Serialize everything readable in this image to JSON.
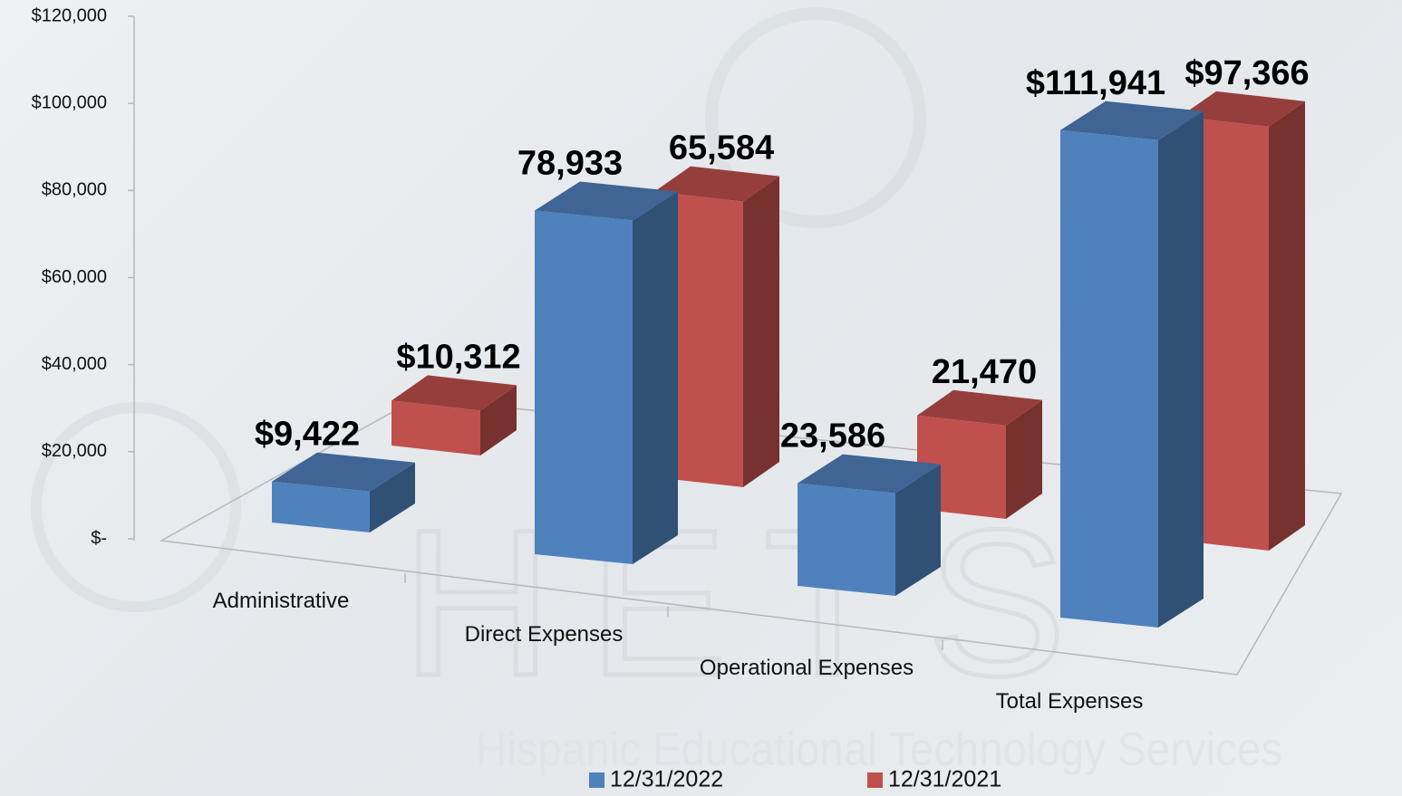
{
  "chart_data": {
    "type": "bar3d",
    "categories": [
      "Administrative",
      "Direct Expenses",
      "Operational Expenses",
      "Total Expenses"
    ],
    "series": [
      {
        "name": "12/31/2022",
        "color": "#4f81bd",
        "values": [
          9422,
          78933,
          23586,
          111941
        ],
        "value_labels": [
          "$9,422",
          "78,933",
          "23,586",
          "$111,941"
        ]
      },
      {
        "name": "12/31/2021",
        "color": "#c0504d",
        "values": [
          10312,
          65584,
          21470,
          97366
        ],
        "value_labels": [
          "$10,312",
          "65,584",
          "21,470",
          "$97,366"
        ]
      }
    ],
    "ylim": [
      0,
      120000
    ],
    "yticks": [
      {
        "value": 0,
        "label": "$-"
      },
      {
        "value": 20000,
        "label": "$20,000"
      },
      {
        "value": 40000,
        "label": "$40,000"
      },
      {
        "value": 60000,
        "label": "$60,000"
      },
      {
        "value": 80000,
        "label": "$80,000"
      },
      {
        "value": 100000,
        "label": "$100,000"
      },
      {
        "value": 120000,
        "label": "$120,000"
      }
    ],
    "legend": "bottom",
    "watermark": {
      "logo": "HETS",
      "text": "Hispanic Educational Technology Services"
    }
  }
}
